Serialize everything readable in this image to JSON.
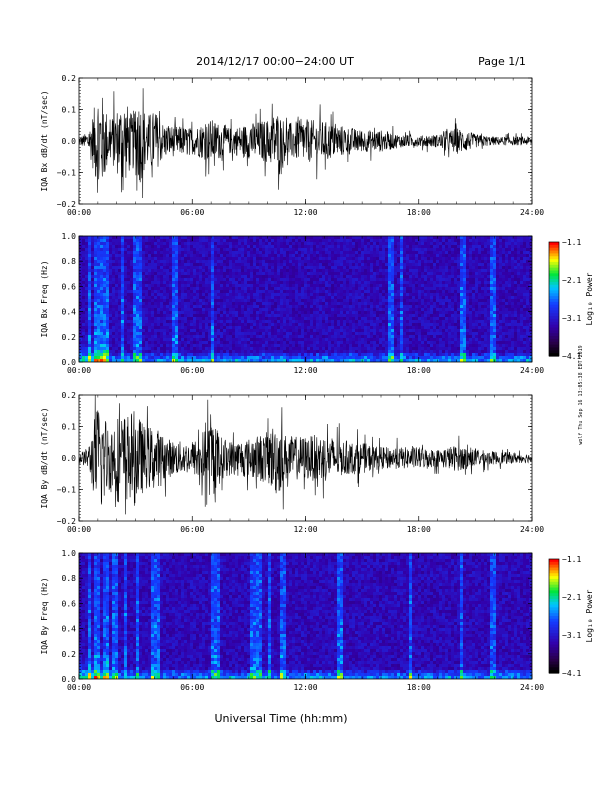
{
  "header": {
    "title": "2014/12/17   00:00−24:00 UT",
    "page": "Page 1/1"
  },
  "side_note": "wolf Thu Sep 16 13:05:38 EDT 2019",
  "xlabel": "Universal Time (hh:mm)",
  "chart_data": [
    {
      "type": "line",
      "ylabel": "IQA Bx dB/dt (nT/sec)",
      "xlim_hours": [
        0,
        24
      ],
      "ylim": [
        -0.2,
        0.2
      ],
      "x_ticks": [
        "00:00",
        "06:00",
        "12:00",
        "18:00",
        "24:00"
      ],
      "y_ticks": [
        "0.2",
        "0.1",
        "0.0",
        "−0.1",
        "−0.2"
      ],
      "y_tick_values": [
        0.2,
        0.1,
        0.0,
        -0.1,
        -0.2
      ],
      "color": "#000000",
      "envelope": {
        "x_hours": [
          0,
          0.5,
          0.8,
          1.0,
          1.3,
          1.6,
          2.0,
          2.4,
          2.8,
          3.2,
          3.6,
          4.0,
          4.5,
          5.0,
          6.0,
          7.0,
          8.0,
          9.0,
          10.0,
          10.5,
          11.0,
          12.0,
          13.0,
          14.0,
          15.0,
          16.0,
          17.0,
          18.0,
          19.0,
          20.0,
          20.5,
          21.0,
          22.0,
          23.0,
          24.0
        ],
        "amplitude": [
          0.02,
          0.04,
          0.15,
          0.25,
          0.2,
          0.09,
          0.15,
          0.2,
          0.12,
          0.2,
          0.12,
          0.14,
          0.08,
          0.07,
          0.06,
          0.1,
          0.06,
          0.08,
          0.1,
          0.14,
          0.08,
          0.1,
          0.09,
          0.07,
          0.05,
          0.05,
          0.03,
          0.025,
          0.03,
          0.06,
          0.05,
          0.03,
          0.02,
          0.02,
          0.02
        ]
      }
    },
    {
      "type": "heatmap",
      "ylabel": "IQA Bx Freq (Hz)",
      "xlim_hours": [
        0,
        24
      ],
      "ylim": [
        0.0,
        1.0
      ],
      "x_ticks": [
        "00:00",
        "06:00",
        "12:00",
        "18:00",
        "24:00"
      ],
      "y_ticks": [
        "1.0",
        "0.8",
        "0.6",
        "0.4",
        "0.2",
        "0.0"
      ],
      "y_tick_values": [
        1.0,
        0.8,
        0.6,
        0.4,
        0.2,
        0.0
      ],
      "colorbar": {
        "label": "Log₁₀ Power",
        "ticks": [
          "−1.1",
          "−2.1",
          "−3.1",
          "−4.1"
        ],
        "range": [
          -4.1,
          -1.1
        ]
      },
      "vertical_streaks_hours": [
        0.5,
        0.8,
        1.0,
        1.3,
        2.2,
        2.9,
        3.2,
        5.0,
        7.0,
        16.5,
        17.0,
        20.3,
        21.9
      ]
    },
    {
      "type": "line",
      "ylabel": "IQA By dB/dt (nT/sec)",
      "xlim_hours": [
        0,
        24
      ],
      "ylim": [
        -0.2,
        0.2
      ],
      "x_ticks": [
        "00:00",
        "06:00",
        "12:00",
        "18:00",
        "24:00"
      ],
      "y_ticks": [
        "0.2",
        "0.1",
        "0.0",
        "−0.1",
        "−0.2"
      ],
      "y_tick_values": [
        0.2,
        0.1,
        0.0,
        -0.1,
        -0.2
      ],
      "color": "#000000",
      "envelope": {
        "x_hours": [
          0,
          0.5,
          0.8,
          1.0,
          1.3,
          1.6,
          2.0,
          2.5,
          3.0,
          3.5,
          4.0,
          4.5,
          5.0,
          6.0,
          6.8,
          7.0,
          7.5,
          8.0,
          9.0,
          10.0,
          10.5,
          11.0,
          12.0,
          13.0,
          14.0,
          15.0,
          16.0,
          17.0,
          18.0,
          19.0,
          20.0,
          21.0,
          22.0,
          23.0,
          24.0
        ],
        "amplitude": [
          0.02,
          0.05,
          0.18,
          0.25,
          0.22,
          0.15,
          0.2,
          0.2,
          0.22,
          0.14,
          0.15,
          0.1,
          0.08,
          0.07,
          0.15,
          0.2,
          0.1,
          0.08,
          0.09,
          0.12,
          0.18,
          0.1,
          0.1,
          0.11,
          0.08,
          0.07,
          0.05,
          0.05,
          0.05,
          0.04,
          0.06,
          0.04,
          0.03,
          0.025,
          0.02
        ]
      }
    },
    {
      "type": "heatmap",
      "ylabel": "IQA By Freq (Hz)",
      "xlim_hours": [
        0,
        24
      ],
      "ylim": [
        0.0,
        1.0
      ],
      "x_ticks": [
        "00:00",
        "06:00",
        "12:00",
        "18:00",
        "24:00"
      ],
      "y_ticks": [
        "1.0",
        "0.8",
        "0.6",
        "0.4",
        "0.2",
        "0.0"
      ],
      "y_tick_values": [
        1.0,
        0.8,
        0.6,
        0.4,
        0.2,
        0.0
      ],
      "colorbar": {
        "label": "Log₁₀ Power",
        "ticks": [
          "−1.1",
          "−2.1",
          "−3.1",
          "−4.1"
        ],
        "range": [
          -4.1,
          -1.1
        ]
      },
      "vertical_streaks_hours": [
        0.5,
        0.9,
        1.3,
        1.8,
        2.4,
        3.0,
        3.8,
        4.1,
        7.0,
        7.2,
        9.1,
        9.5,
        10.0,
        10.7,
        13.8,
        17.5,
        20.2,
        21.9
      ]
    }
  ]
}
